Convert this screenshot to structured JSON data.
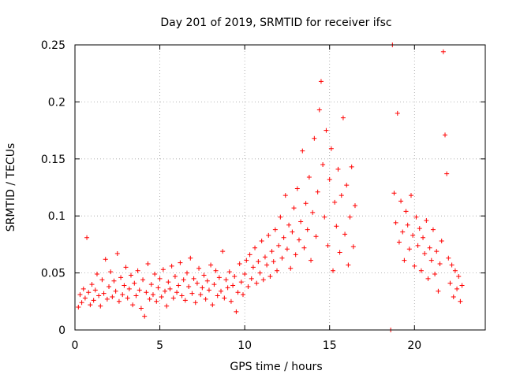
{
  "chart_data": {
    "type": "scatter",
    "title": "Day 201 of 2019, SRMTID for receiver ifsc",
    "xlabel": "GPS time / hours",
    "ylabel": "SRMTID / TECUs",
    "xlim": [
      0,
      24.17
    ],
    "ylim": [
      0,
      0.25
    ],
    "xticks": [
      0,
      5,
      10,
      15,
      20
    ],
    "xtick_labels": [
      "0",
      "5",
      "10",
      "15",
      "20"
    ],
    "yticks": [
      0,
      0.05,
      0.1,
      0.15,
      0.2,
      0.25
    ],
    "ytick_labels": [
      "0",
      "0.05",
      "0.1",
      "0.15",
      "0.2",
      "0.25"
    ],
    "grid": true,
    "legend": "none",
    "marker": "+",
    "color": "#ff0000",
    "series": [
      {
        "name": "SRMTID",
        "points": [
          [
            0.2,
            0.02
          ],
          [
            0.3,
            0.031
          ],
          [
            0.4,
            0.024
          ],
          [
            0.5,
            0.036
          ],
          [
            0.6,
            0.028
          ],
          [
            0.7,
            0.081
          ],
          [
            0.8,
            0.033
          ],
          [
            0.9,
            0.022
          ],
          [
            1.0,
            0.04
          ],
          [
            1.1,
            0.026
          ],
          [
            1.2,
            0.035
          ],
          [
            1.3,
            0.049
          ],
          [
            1.4,
            0.03
          ],
          [
            1.5,
            0.021
          ],
          [
            1.6,
            0.044
          ],
          [
            1.7,
            0.032
          ],
          [
            1.8,
            0.062
          ],
          [
            1.9,
            0.027
          ],
          [
            2.0,
            0.038
          ],
          [
            2.1,
            0.051
          ],
          [
            2.2,
            0.029
          ],
          [
            2.3,
            0.043
          ],
          [
            2.4,
            0.034
          ],
          [
            2.5,
            0.067
          ],
          [
            2.6,
            0.025
          ],
          [
            2.7,
            0.046
          ],
          [
            2.8,
            0.031
          ],
          [
            2.9,
            0.039
          ],
          [
            3.0,
            0.055
          ],
          [
            3.1,
            0.028
          ],
          [
            3.2,
            0.036
          ],
          [
            3.3,
            0.048
          ],
          [
            3.4,
            0.022
          ],
          [
            3.5,
            0.041
          ],
          [
            3.6,
            0.03
          ],
          [
            3.7,
            0.052
          ],
          [
            3.8,
            0.035
          ],
          [
            3.9,
            0.019
          ],
          [
            4.0,
            0.044
          ],
          [
            4.1,
            0.012
          ],
          [
            4.2,
            0.033
          ],
          [
            4.3,
            0.058
          ],
          [
            4.4,
            0.027
          ],
          [
            4.5,
            0.04
          ],
          [
            4.6,
            0.031
          ],
          [
            4.7,
            0.049
          ],
          [
            4.8,
            0.025
          ],
          [
            4.9,
            0.037
          ],
          [
            5.0,
            0.045
          ],
          [
            5.1,
            0.029
          ],
          [
            5.2,
            0.053
          ],
          [
            5.3,
            0.034
          ],
          [
            5.4,
            0.021
          ],
          [
            5.5,
            0.042
          ],
          [
            5.6,
            0.036
          ],
          [
            5.7,
            0.056
          ],
          [
            5.8,
            0.028
          ],
          [
            5.9,
            0.047
          ],
          [
            6.0,
            0.033
          ],
          [
            6.1,
            0.039
          ],
          [
            6.2,
            0.059
          ],
          [
            6.3,
            0.03
          ],
          [
            6.4,
            0.044
          ],
          [
            6.5,
            0.026
          ],
          [
            6.6,
            0.05
          ],
          [
            6.7,
            0.038
          ],
          [
            6.8,
            0.063
          ],
          [
            6.9,
            0.032
          ],
          [
            7.0,
            0.045
          ],
          [
            7.1,
            0.024
          ],
          [
            7.2,
            0.041
          ],
          [
            7.3,
            0.054
          ],
          [
            7.4,
            0.031
          ],
          [
            7.5,
            0.037
          ],
          [
            7.6,
            0.048
          ],
          [
            7.7,
            0.027
          ],
          [
            7.8,
            0.043
          ],
          [
            7.9,
            0.035
          ],
          [
            8.0,
            0.057
          ],
          [
            8.1,
            0.022
          ],
          [
            8.2,
            0.04
          ],
          [
            8.3,
            0.052
          ],
          [
            8.4,
            0.03
          ],
          [
            8.5,
            0.046
          ],
          [
            8.6,
            0.034
          ],
          [
            8.7,
            0.069
          ],
          [
            8.8,
            0.028
          ],
          [
            8.9,
            0.044
          ],
          [
            9.0,
            0.037
          ],
          [
            9.1,
            0.051
          ],
          [
            9.2,
            0.025
          ],
          [
            9.3,
            0.039
          ],
          [
            9.4,
            0.047
          ],
          [
            9.5,
            0.016
          ],
          [
            9.6,
            0.033
          ],
          [
            9.7,
            0.058
          ],
          [
            9.8,
            0.042
          ],
          [
            9.9,
            0.031
          ],
          [
            10.0,
            0.049
          ],
          [
            10.1,
            0.061
          ],
          [
            10.2,
            0.038
          ],
          [
            10.3,
            0.066
          ],
          [
            10.4,
            0.045
          ],
          [
            10.5,
            0.055
          ],
          [
            10.6,
            0.072
          ],
          [
            10.7,
            0.041
          ],
          [
            10.8,
            0.06
          ],
          [
            10.9,
            0.05
          ],
          [
            11.0,
            0.078
          ],
          [
            11.1,
            0.044
          ],
          [
            11.2,
            0.064
          ],
          [
            11.3,
            0.057
          ],
          [
            11.4,
            0.083
          ],
          [
            11.5,
            0.047
          ],
          [
            11.6,
            0.069
          ],
          [
            11.7,
            0.06
          ],
          [
            11.8,
            0.088
          ],
          [
            11.9,
            0.052
          ],
          [
            12.0,
            0.074
          ],
          [
            12.1,
            0.099
          ],
          [
            12.2,
            0.063
          ],
          [
            12.3,
            0.081
          ],
          [
            12.4,
            0.118
          ],
          [
            12.5,
            0.071
          ],
          [
            12.6,
            0.092
          ],
          [
            12.7,
            0.054
          ],
          [
            12.8,
            0.086
          ],
          [
            12.9,
            0.107
          ],
          [
            13.0,
            0.066
          ],
          [
            13.1,
            0.124
          ],
          [
            13.2,
            0.079
          ],
          [
            13.3,
            0.095
          ],
          [
            13.4,
            0.157
          ],
          [
            13.5,
            0.072
          ],
          [
            13.6,
            0.111
          ],
          [
            13.7,
            0.088
          ],
          [
            13.8,
            0.134
          ],
          [
            13.9,
            0.061
          ],
          [
            14.0,
            0.103
          ],
          [
            14.1,
            0.168
          ],
          [
            14.2,
            0.082
          ],
          [
            14.3,
            0.121
          ],
          [
            14.4,
            0.193
          ],
          [
            14.5,
            0.218
          ],
          [
            14.6,
            0.145
          ],
          [
            14.7,
            0.099
          ],
          [
            14.8,
            0.175
          ],
          [
            14.9,
            0.074
          ],
          [
            15.0,
            0.132
          ],
          [
            15.1,
            0.159
          ],
          [
            15.2,
            0.052
          ],
          [
            15.3,
            0.112
          ],
          [
            15.4,
            0.091
          ],
          [
            15.5,
            0.141
          ],
          [
            15.6,
            0.068
          ],
          [
            15.7,
            0.118
          ],
          [
            15.8,
            0.186
          ],
          [
            15.9,
            0.084
          ],
          [
            16.0,
            0.127
          ],
          [
            16.1,
            0.057
          ],
          [
            16.2,
            0.099
          ],
          [
            16.3,
            0.143
          ],
          [
            16.4,
            0.073
          ],
          [
            16.5,
            0.109
          ],
          [
            18.6,
            0.0
          ],
          [
            18.7,
            0.25
          ],
          [
            18.8,
            0.12
          ],
          [
            18.9,
            0.094
          ],
          [
            19.0,
            0.19
          ],
          [
            19.1,
            0.077
          ],
          [
            19.2,
            0.113
          ],
          [
            19.3,
            0.086
          ],
          [
            19.4,
            0.061
          ],
          [
            19.5,
            0.104
          ],
          [
            19.6,
            0.092
          ],
          [
            19.7,
            0.071
          ],
          [
            19.8,
            0.118
          ],
          [
            19.9,
            0.083
          ],
          [
            20.0,
            0.056
          ],
          [
            20.1,
            0.099
          ],
          [
            20.2,
            0.074
          ],
          [
            20.3,
            0.089
          ],
          [
            20.4,
            0.052
          ],
          [
            20.5,
            0.081
          ],
          [
            20.6,
            0.067
          ],
          [
            20.7,
            0.096
          ],
          [
            20.8,
            0.045
          ],
          [
            20.9,
            0.072
          ],
          [
            21.0,
            0.061
          ],
          [
            21.1,
            0.088
          ],
          [
            21.2,
            0.049
          ],
          [
            21.3,
            0.069
          ],
          [
            21.4,
            0.034
          ],
          [
            21.5,
            0.058
          ],
          [
            21.6,
            0.078
          ],
          [
            21.7,
            0.244
          ],
          [
            21.8,
            0.171
          ],
          [
            21.9,
            0.137
          ],
          [
            22.0,
            0.063
          ],
          [
            22.1,
            0.041
          ],
          [
            22.2,
            0.057
          ],
          [
            22.3,
            0.029
          ],
          [
            22.4,
            0.052
          ],
          [
            22.5,
            0.036
          ],
          [
            22.6,
            0.047
          ],
          [
            22.7,
            0.025
          ],
          [
            22.8,
            0.039
          ]
        ]
      }
    ]
  }
}
